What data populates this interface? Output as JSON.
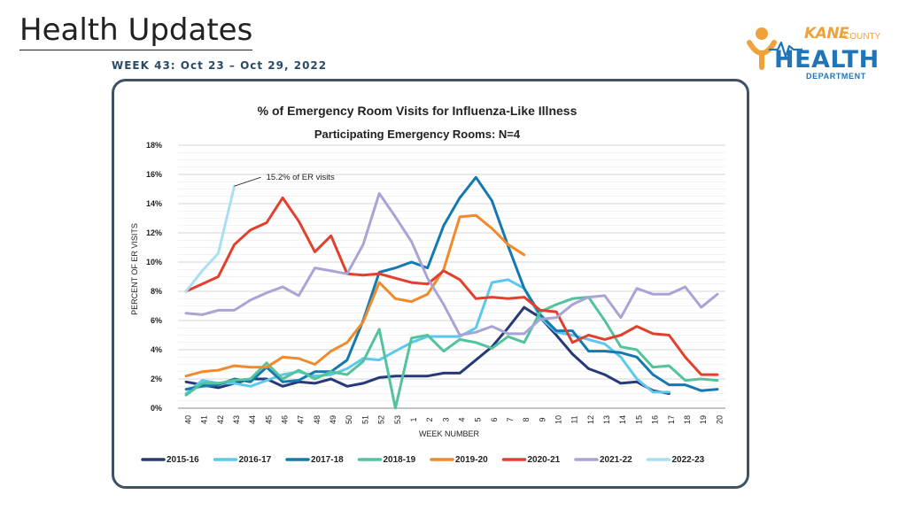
{
  "header": {
    "title": "Health Updates",
    "week": "WEEK 43: Oct 23 – Oct 29, 2022"
  },
  "logo": {
    "kane": "KANE",
    "county": "COUNTY",
    "health": "HEALTH",
    "department": "DEPARTMENT",
    "orange": "#f0a23a",
    "blue": "#1f75b8"
  },
  "chart_data": {
    "type": "line",
    "title": "% of Emergency Room Visits for Influenza-Like Illness",
    "subtitle": "Participating Emergency Rooms: N=4",
    "xlabel": "WEEK NUMBER",
    "ylabel": "PERCENT OF ER VISITS",
    "ylim": [
      0,
      18
    ],
    "yticks": [
      "0%",
      "2%",
      "4%",
      "6%",
      "8%",
      "10%",
      "12%",
      "14%",
      "16%",
      "18%"
    ],
    "categories": [
      "40",
      "41",
      "42",
      "43",
      "44",
      "45",
      "46",
      "47",
      "48",
      "49",
      "50",
      "51",
      "52",
      "53",
      "1",
      "2",
      "3",
      "4",
      "5",
      "6",
      "7",
      "8",
      "9",
      "10",
      "11",
      "12",
      "13",
      "14",
      "15",
      "16",
      "17",
      "18",
      "19",
      "20"
    ],
    "annotation": {
      "text": "15.2% of ER visits",
      "series": "2022-23",
      "index": 3
    },
    "legend_position": "bottom",
    "series": [
      {
        "name": "2015-16",
        "color": "#263a7a",
        "values": [
          1.8,
          1.6,
          1.4,
          1.7,
          2.0,
          2.0,
          1.5,
          1.8,
          1.7,
          2.0,
          1.5,
          1.7,
          2.1,
          2.2,
          2.2,
          2.2,
          2.4,
          2.4,
          3.3,
          4.2,
          5.5,
          6.9,
          6.2,
          5.0,
          3.7,
          2.7,
          2.3,
          1.7,
          1.8,
          1.2,
          1.0,
          null,
          null,
          null
        ]
      },
      {
        "name": "2016-17",
        "color": "#5cc8ec",
        "values": [
          1.0,
          1.9,
          1.7,
          1.7,
          1.5,
          1.9,
          2.3,
          2.5,
          2.2,
          2.3,
          2.7,
          3.4,
          3.3,
          3.9,
          4.5,
          4.9,
          4.9,
          4.9,
          5.5,
          8.6,
          8.8,
          8.2,
          6.2,
          5.2,
          5.0,
          4.7,
          4.4,
          3.5,
          2.0,
          1.1,
          1.1,
          null,
          null,
          null
        ]
      },
      {
        "name": "2017-18",
        "color": "#1479b1",
        "values": [
          1.3,
          1.5,
          1.6,
          2.0,
          1.8,
          2.8,
          1.8,
          1.9,
          2.5,
          2.5,
          3.3,
          6.0,
          9.3,
          9.6,
          10.0,
          9.6,
          12.5,
          14.4,
          15.8,
          14.2,
          11.1,
          8.2,
          6.4,
          5.3,
          5.3,
          3.9,
          3.9,
          3.8,
          3.5,
          2.3,
          1.6,
          1.6,
          1.2,
          1.3
        ]
      },
      {
        "name": "2018-19",
        "color": "#52c39a",
        "values": [
          0.9,
          1.7,
          1.7,
          1.9,
          2.0,
          3.1,
          2.0,
          2.6,
          2.0,
          2.5,
          2.3,
          3.2,
          5.4,
          0.0,
          4.8,
          5.0,
          3.9,
          4.7,
          4.5,
          4.1,
          4.9,
          4.5,
          6.6,
          7.1,
          7.5,
          7.6,
          6.0,
          4.2,
          4.0,
          2.8,
          2.9,
          1.9,
          2.0,
          1.9
        ]
      },
      {
        "name": "2019-20",
        "color": "#f28a2c",
        "values": [
          2.2,
          2.5,
          2.6,
          2.9,
          2.8,
          2.8,
          3.5,
          3.4,
          3.0,
          3.9,
          4.5,
          5.9,
          8.6,
          7.5,
          7.3,
          7.8,
          9.5,
          13.1,
          13.2,
          12.3,
          11.2,
          10.5,
          null,
          null,
          null,
          null,
          null,
          null,
          null,
          null,
          null,
          null,
          null,
          null
        ]
      },
      {
        "name": "2020-21",
        "color": "#e2402c",
        "values": [
          8.0,
          8.5,
          9.0,
          11.2,
          12.2,
          12.7,
          14.4,
          12.8,
          10.7,
          11.8,
          9.2,
          9.1,
          9.2,
          8.9,
          8.6,
          8.5,
          9.4,
          8.8,
          7.5,
          7.6,
          7.5,
          7.6,
          6.7,
          6.6,
          4.5,
          5.0,
          4.7,
          5.0,
          5.6,
          5.1,
          5.0,
          3.5,
          2.3,
          2.3
        ]
      },
      {
        "name": "2021-22",
        "color": "#a9a4d6",
        "values": [
          6.5,
          6.4,
          6.7,
          6.7,
          7.4,
          7.9,
          8.3,
          7.7,
          9.6,
          9.4,
          9.2,
          11.2,
          14.7,
          13.1,
          11.4,
          8.9,
          7.1,
          5.0,
          5.2,
          5.6,
          5.1,
          5.1,
          6.1,
          6.2,
          7.1,
          7.6,
          7.7,
          6.2,
          8.2,
          7.8,
          7.8,
          8.3,
          6.9,
          7.8
        ]
      },
      {
        "name": "2022-23",
        "color": "#a8dff3",
        "values": [
          8.0,
          9.4,
          10.6,
          15.2,
          null,
          null,
          null,
          null,
          null,
          null,
          null,
          null,
          null,
          null,
          null,
          null,
          null,
          null,
          null,
          null,
          null,
          null,
          null,
          null,
          null,
          null,
          null,
          null,
          null,
          null,
          null,
          null,
          null,
          null
        ]
      }
    ]
  }
}
